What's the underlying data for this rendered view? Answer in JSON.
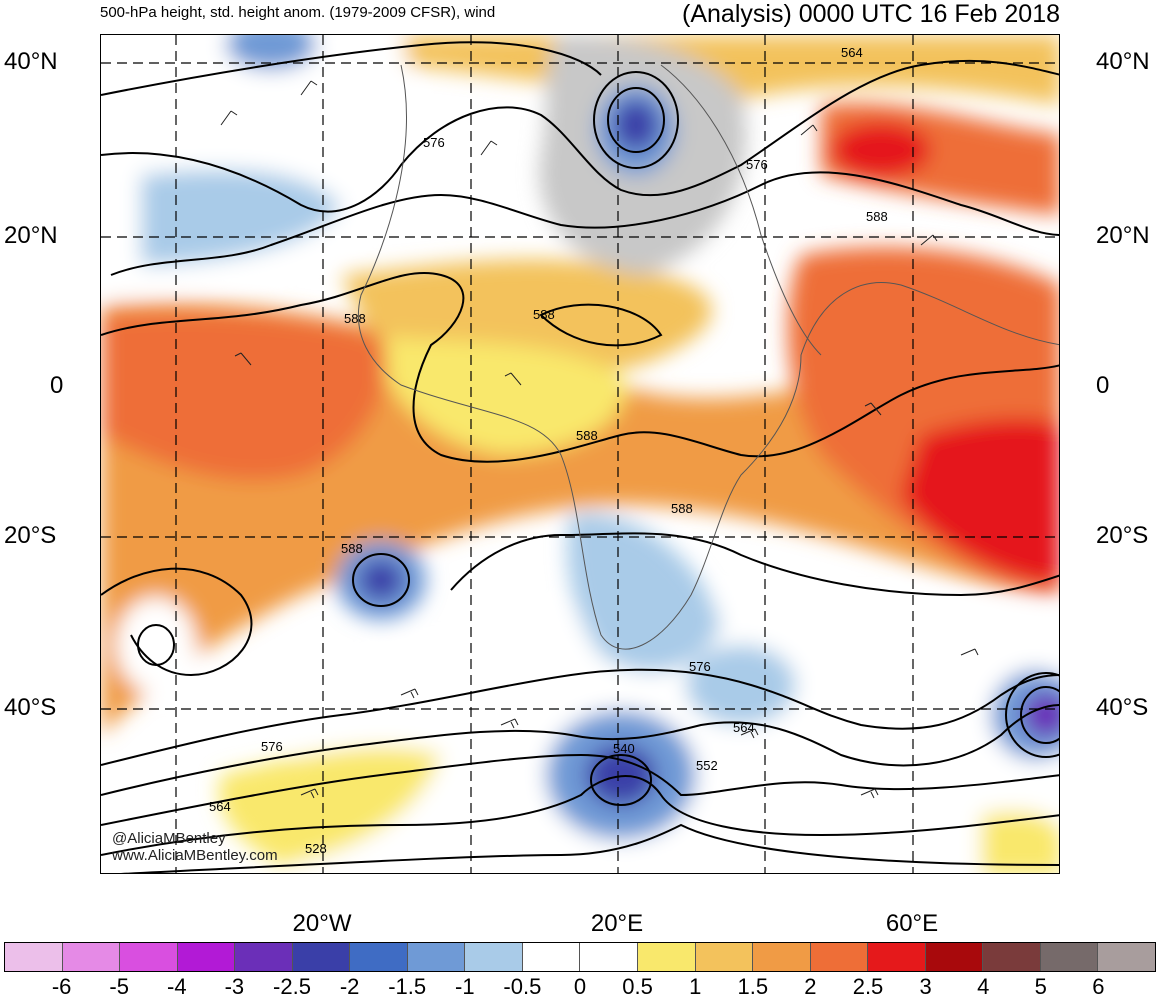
{
  "header": {
    "title_left": "500-hPa height, std. height anom. (1979-2009 CFSR), wind",
    "title_right": "(Analysis) 0000 UTC 16 Feb 2018"
  },
  "lat_labels": [
    "40°N",
    "20°N",
    "0",
    "20°S",
    "40°S"
  ],
  "lon_labels": [
    "20°W",
    "20°E",
    "60°E"
  ],
  "contour_labels": [
    "564",
    "576",
    "576",
    "588",
    "588",
    "588",
    "588",
    "588",
    "588",
    "576",
    "564",
    "552",
    "540",
    "576",
    "564",
    "528"
  ],
  "watermark": {
    "line1": "@AliciaMBentley",
    "line2": "www.AliciaMBentley.com"
  },
  "colorbar": {
    "labels": [
      "-6",
      "-5",
      "-4",
      "-3",
      "-2.5",
      "-2",
      "-1.5",
      "-1",
      "-0.5",
      "0",
      "0.5",
      "1",
      "1.5",
      "2",
      "2.5",
      "3",
      "4",
      "5",
      "6"
    ],
    "colors": [
      "#ecbfea",
      "#e58ae6",
      "#d94fe0",
      "#b21ad6",
      "#6b2fb8",
      "#3a3fa8",
      "#3f6cc4",
      "#6f9ad6",
      "#a9cbe8",
      "#ffffff",
      "#ffffff",
      "#f9e86c",
      "#f3c25c",
      "#f09b45",
      "#ee6e37",
      "#e5191b",
      "#a8090c",
      "#7a3b3b",
      "#766a6a",
      "#a89d9d"
    ]
  }
}
